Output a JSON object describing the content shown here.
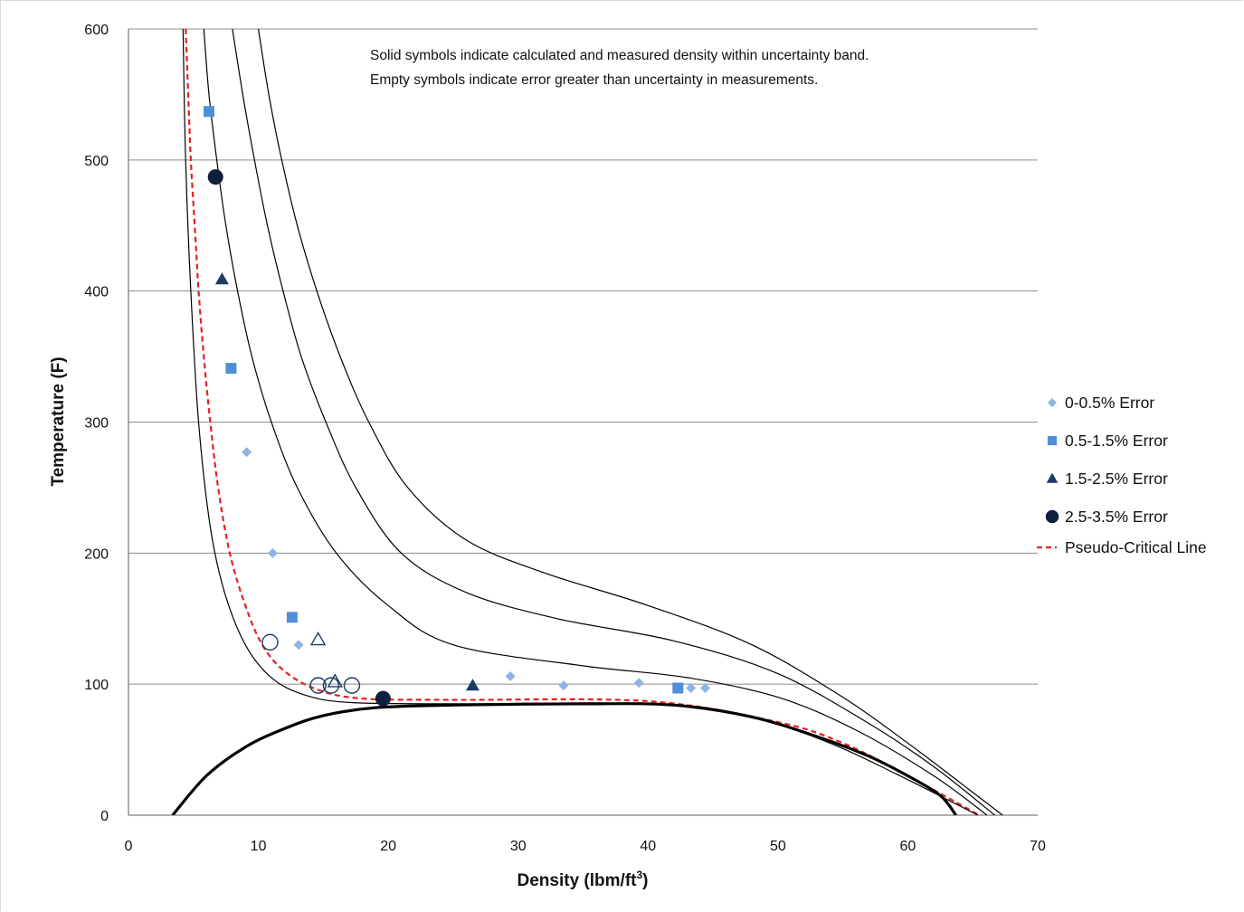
{
  "chart_data": {
    "type": "scatter",
    "xlabel": "Density (lbm/ft",
    "xlabel_sup": "3",
    "xlabel_end": ")",
    "ylabel": "Temperature (F)",
    "xlim": [
      0,
      70
    ],
    "ylim": [
      0,
      600
    ],
    "x_ticks": [
      "0",
      "10",
      "20",
      "30",
      "40",
      "50",
      "60",
      "70"
    ],
    "y_ticks": [
      "0",
      "100",
      "200",
      "300",
      "400",
      "500",
      "600"
    ],
    "grid": "horizontal",
    "legend_position": "right",
    "annotations": [
      "Solid symbols indicate calculated and measured density within uncertainty band.",
      "Empty symbols indicate error greater than uncertainty in measurements."
    ],
    "legend": [
      {
        "label": "0-0.5% Error",
        "marker": "diamond",
        "color": "#8eb4e3"
      },
      {
        "label": "0.5-1.5% Error",
        "marker": "square",
        "color": "#4f8fd8"
      },
      {
        "label": "1.5-2.5% Error",
        "marker": "triangle",
        "color": "#1f3a64"
      },
      {
        "label": "2.5-3.5% Error",
        "marker": "circle",
        "color": "#0f1f3d"
      },
      {
        "label": "Pseudo-Critical Line",
        "marker": "dashed-line",
        "color": "#e8201c"
      }
    ],
    "series": [
      {
        "name": "0-0.5% Error",
        "marker": "diamond",
        "filled": true,
        "points": [
          [
            9.1,
            277
          ],
          [
            11.1,
            200
          ],
          [
            13.1,
            130
          ],
          [
            29.4,
            106
          ],
          [
            33.5,
            99
          ],
          [
            39.3,
            101
          ],
          [
            43.3,
            97
          ],
          [
            44.4,
            97
          ]
        ]
      },
      {
        "name": "0.5-1.5% Error",
        "marker": "square",
        "filled": true,
        "points": [
          [
            6.2,
            537
          ],
          [
            7.9,
            341
          ],
          [
            12.6,
            151
          ],
          [
            42.3,
            97
          ]
        ]
      },
      {
        "name": "1.5-2.5% Error",
        "marker": "triangle",
        "filled": true,
        "points": [
          [
            7.2,
            409
          ],
          [
            26.5,
            99
          ]
        ]
      },
      {
        "name": "1.5-2.5% Error",
        "marker": "triangle",
        "filled": false,
        "points": [
          [
            14.6,
            134
          ],
          [
            15.9,
            102
          ]
        ]
      },
      {
        "name": "2.5-3.5% Error",
        "marker": "circle",
        "filled": true,
        "points": [
          [
            6.7,
            487
          ],
          [
            19.6,
            89
          ]
        ]
      },
      {
        "name": "2.5-3.5% Error",
        "marker": "circle",
        "filled": false,
        "points": [
          [
            10.9,
            132
          ],
          [
            14.6,
            99
          ],
          [
            15.6,
            99
          ],
          [
            17.2,
            99
          ]
        ]
      }
    ],
    "curves": [
      {
        "name": "Pseudo-Critical Line",
        "style": "dashed",
        "color": "#e8201c",
        "points": [
          [
            4.4,
            600
          ],
          [
            4.6,
            550
          ],
          [
            4.8,
            500
          ],
          [
            5.1,
            450
          ],
          [
            5.4,
            400
          ],
          [
            5.8,
            350
          ],
          [
            6.3,
            300
          ],
          [
            6.9,
            250
          ],
          [
            7.8,
            200
          ],
          [
            9.0,
            160
          ],
          [
            10.3,
            130
          ],
          [
            12.0,
            110
          ],
          [
            14.5,
            96
          ],
          [
            18.0,
            89
          ],
          [
            25.0,
            88
          ],
          [
            40.0,
            87
          ],
          [
            50.0,
            71
          ],
          [
            55.0,
            55
          ],
          [
            60.0,
            30
          ],
          [
            65.5,
            0
          ]
        ]
      },
      {
        "name": "isobar-1",
        "style": "solid",
        "color": "#000000",
        "points": [
          [
            4.2,
            600
          ],
          [
            4.4,
            500
          ],
          [
            4.8,
            400
          ],
          [
            5.4,
            300
          ],
          [
            6.3,
            220
          ],
          [
            7.4,
            170
          ],
          [
            9.0,
            130
          ],
          [
            11.0,
            105
          ],
          [
            13.5,
            92
          ],
          [
            17.0,
            86
          ],
          [
            25.0,
            85
          ],
          [
            40.0,
            85
          ],
          [
            48.0,
            75
          ],
          [
            54.0,
            55
          ],
          [
            59.0,
            32
          ],
          [
            65.4,
            0
          ]
        ]
      },
      {
        "name": "isobar-2",
        "style": "solid",
        "color": "#000000",
        "points": [
          [
            5.8,
            600
          ],
          [
            6.2,
            550
          ],
          [
            6.8,
            500
          ],
          [
            7.5,
            450
          ],
          [
            8.4,
            400
          ],
          [
            9.5,
            350
          ],
          [
            11.0,
            300
          ],
          [
            13.0,
            250
          ],
          [
            16.0,
            200
          ],
          [
            20.0,
            160
          ],
          [
            25.0,
            130
          ],
          [
            35.0,
            114
          ],
          [
            43.0,
            105
          ],
          [
            50.0,
            90
          ],
          [
            56.0,
            65
          ],
          [
            62.0,
            30
          ],
          [
            66.1,
            0
          ]
        ]
      },
      {
        "name": "isobar-3",
        "style": "solid",
        "color": "#000000",
        "points": [
          [
            8.0,
            600
          ],
          [
            8.8,
            550
          ],
          [
            9.7,
            500
          ],
          [
            10.7,
            450
          ],
          [
            11.9,
            400
          ],
          [
            13.3,
            350
          ],
          [
            15.2,
            300
          ],
          [
            17.5,
            250
          ],
          [
            21.0,
            200
          ],
          [
            26.0,
            170
          ],
          [
            33.0,
            150
          ],
          [
            42.0,
            133
          ],
          [
            50.0,
            108
          ],
          [
            57.0,
            70
          ],
          [
            62.0,
            37
          ],
          [
            66.7,
            0
          ]
        ]
      },
      {
        "name": "isobar-4",
        "style": "solid",
        "color": "#000000",
        "points": [
          [
            10.0,
            600
          ],
          [
            10.8,
            550
          ],
          [
            11.8,
            500
          ],
          [
            13.0,
            450
          ],
          [
            14.5,
            400
          ],
          [
            16.3,
            350
          ],
          [
            18.5,
            300
          ],
          [
            21.5,
            250
          ],
          [
            26.0,
            210
          ],
          [
            32.0,
            185
          ],
          [
            40.0,
            160
          ],
          [
            48.0,
            130
          ],
          [
            55.0,
            90
          ],
          [
            60.0,
            55
          ],
          [
            64.0,
            25
          ],
          [
            67.3,
            0
          ]
        ]
      },
      {
        "name": "saturation-dome",
        "style": "bold",
        "color": "#000000",
        "points": [
          [
            3.4,
            0
          ],
          [
            6.0,
            30
          ],
          [
            9.0,
            52
          ],
          [
            12.0,
            66
          ],
          [
            15.0,
            76
          ],
          [
            19.0,
            82
          ],
          [
            25.0,
            84
          ],
          [
            35.0,
            85
          ],
          [
            42.0,
            84
          ],
          [
            48.0,
            75
          ],
          [
            53.0,
            60
          ],
          [
            57.0,
            45
          ],
          [
            60.0,
            30
          ],
          [
            62.5,
            15
          ],
          [
            63.7,
            0
          ]
        ]
      }
    ]
  }
}
